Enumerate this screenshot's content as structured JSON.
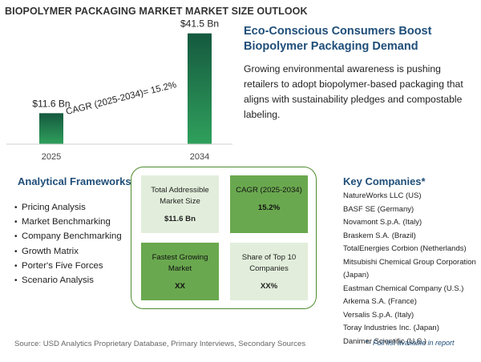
{
  "title": "BIOPOLYMER PACKAGING MARKET MARKET SIZE OUTLOOK",
  "chart_data": {
    "type": "bar",
    "categories": [
      "2025",
      "2034"
    ],
    "values": [
      11.6,
      41.5
    ],
    "data_labels": [
      "$11.6 Bn",
      "$41.5 Bn"
    ],
    "annotation": "CAGR (2025-2034)=   15.2%",
    "title": "",
    "xlabel": "",
    "ylabel": "",
    "ylim": [
      0,
      45
    ],
    "grid": false,
    "colors": {
      "gradient_top": "#15593f",
      "gradient_bottom": "#2fa05c"
    }
  },
  "headline": "Eco-Conscious Consumers Boost Biopolymer Packaging Demand",
  "description": "Growing environmental awareness is pushing retailers to adopt biopolymer-based packaging that aligns with sustainability pledges and compostable labeling.",
  "frameworks": {
    "title": "Analytical Frameworks",
    "items": [
      "Pricing Analysis",
      "Market Benchmarking",
      "Company Benchmarking",
      "Growth Matrix",
      "Porter's Five Forces",
      "Scenario Analysis"
    ]
  },
  "matrix": {
    "cells": [
      {
        "label": "Total Addressible Market Size",
        "value": "$11.6 Bn"
      },
      {
        "label": "CAGR (2025-2034)",
        "value": "15.2%"
      },
      {
        "label": "Fastest Growing Market",
        "value": "XX"
      },
      {
        "label": "Share of Top 10 Companies",
        "value": "XX%"
      }
    ],
    "colors": {
      "light": "#e2eedb",
      "dark": "#6aa84f",
      "border": "#4e8b2e"
    }
  },
  "companies": {
    "title": "Key Companies*",
    "items": [
      "NatureWorks LLC (US)",
      "BASF SE (Germany)",
      "Novamont S.p.A. (Italy)",
      "Braskem S.A. (Brazil)",
      "TotalEnergies Corbion (Netherlands)",
      "Mitsubishi Chemical Group Corporation",
      "(Japan)",
      "Eastman Chemical Company (U.S.)",
      "Arkema S.A. (France)",
      "Versalis S.p.A. (Italy)",
      "Toray Industries Inc. (Japan)",
      "Danimer Scientific (U.S.)"
    ],
    "note": "*- Full list available in report"
  },
  "source": "Source: USD Analytics Proprietary Database, Primary Interviews, Secondary Sources"
}
